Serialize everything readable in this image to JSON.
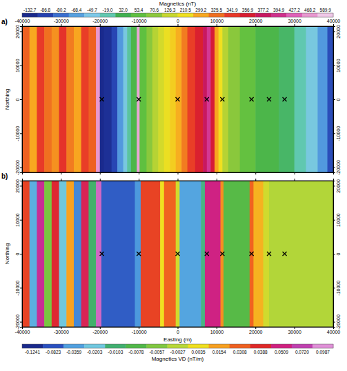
{
  "chart_data": [
    {
      "type": "heatmap",
      "title": "a)",
      "y_label": "Northing",
      "xlim": [
        -40000,
        40000
      ],
      "ylim": [
        -21500,
        21500
      ],
      "xticks": [
        -40000,
        -30000,
        -20000,
        -10000,
        0,
        10000,
        20000,
        30000,
        40000
      ],
      "yticks": [
        -20000,
        -10000,
        0,
        10000,
        20000
      ],
      "cells": {
        "x_edges": [
          -40000,
          -38100,
          -36200,
          -34300,
          -32400,
          -30500,
          -28600,
          -26700,
          -24800,
          -22900,
          -21000,
          -20000,
          -19000,
          -17000,
          -15500,
          -14000,
          -13000,
          -12000,
          -10500,
          -9800,
          -8000,
          -6500,
          -5000,
          -3500,
          -2000,
          -500,
          1000,
          2500,
          4500,
          6500,
          7500,
          8500,
          9500,
          10500,
          11500,
          13000,
          16000,
          20000,
          26000,
          30000,
          33000,
          36000,
          38500,
          40000
        ],
        "values": [
          330,
          299,
          341,
          325,
          310,
          345,
          320,
          300,
          340,
          330,
          468,
          -132,
          -120,
          -86,
          -70,
          -45,
          -10,
          40,
          500,
          53,
          70,
          110,
          150,
          200,
          240,
          290,
          320,
          340,
          355,
          377,
          400,
          360,
          300,
          210,
          110,
          70,
          55,
          40,
          20,
          -19,
          -45,
          -70,
          -85
        ]
      },
      "markers": {
        "x": [
          -19500,
          -10000,
          0,
          7500,
          11500,
          19000,
          23500,
          27500
        ],
        "y": [
          0,
          0,
          0,
          0,
          0,
          0,
          0,
          0
        ],
        "marker": "x",
        "color": "#000000"
      },
      "colorbar": {
        "title": "Magnetics (nT)",
        "ticks": [
          -132.7,
          -86.8,
          -80.2,
          -68.4,
          -49.7,
          {
            "value": -19,
            "label": "-19.0"
          },
          {
            "value": 32,
            "label": "32.0"
          },
          53.4,
          70.6,
          126.3,
          210.5,
          299.2,
          325.5,
          341.9,
          356.9,
          377.2,
          394.9,
          427.2,
          468.2,
          589.9
        ],
        "colors": [
          "#1a2a8c",
          "#2540b0",
          "#3a6fd0",
          "#56a0e0",
          "#7cc8e8",
          "#60c8b0",
          "#40b050",
          "#60c040",
          "#8cc83c",
          "#c8d830",
          "#f0e020",
          "#f8a820",
          "#f07020",
          "#e83828",
          "#d81c30",
          "#c81860",
          "#d0308c",
          "#e060b8",
          "#e898d0",
          "#f0c8e8"
        ]
      }
    },
    {
      "type": "heatmap",
      "title": "b)",
      "x_label": "Easting (m)",
      "y_label": "Northing",
      "xlim": [
        -40000,
        40000
      ],
      "ylim": [
        -21500,
        21500
      ],
      "xticks": [
        -40000,
        -30000,
        -20000,
        -10000,
        0,
        10000,
        20000,
        30000,
        40000
      ],
      "yticks": [
        -20000,
        -10000,
        0,
        10000,
        20000
      ],
      "cells": {
        "x_edges": [
          -40000,
          -38100,
          -36200,
          -34300,
          -32400,
          -30500,
          -28600,
          -26700,
          -24800,
          -22900,
          -21000,
          -19600,
          -11000,
          -9500,
          -4500,
          -3500,
          -500,
          500,
          6000,
          7000,
          11000,
          11800,
          18500,
          19500,
          22000,
          23500,
          40000
        ],
        "values": [
          0.035,
          -0.03,
          0.06,
          -0.006,
          0.04,
          -0.02,
          0.015,
          -0.05,
          0.045,
          -0.01,
          0.085,
          -0.075,
          -0.04,
          0.035,
          0.0035,
          0.03,
          0,
          -0.034,
          -0.012,
          0.052,
          0.02,
          -0.0075,
          0.03,
          0.012,
          0,
          -0.003
        ]
      },
      "markers": {
        "x": [
          -19500,
          -10000,
          0,
          7500,
          11500,
          19000,
          23500,
          27500
        ],
        "y": [
          0,
          0,
          0,
          0,
          0,
          0,
          0,
          0
        ],
        "marker": "x",
        "color": "#000000"
      },
      "colorbar": {
        "title": "Magnetics VD (nT/m)",
        "ticks": [
          -0.1241,
          -0.0823,
          -0.0359,
          -0.0203,
          -0.0103,
          -0.0078,
          -0.0057,
          -0.0027,
          0.0035,
          0.0154,
          0.0308,
          0.0388,
          0.0509,
          {
            "value": 0.072,
            "label": "0.0720"
          },
          0.0987
        ],
        "colors": [
          "#1a2a8c",
          "#2a50c0",
          "#50a0e0",
          "#70c8e0",
          "#40b070",
          "#50b848",
          "#80c840",
          "#b8d838",
          "#f0e020",
          "#f8a020",
          "#f06020",
          "#e02828",
          "#d02080",
          "#c040b0",
          "#e090d8"
        ]
      }
    }
  ]
}
